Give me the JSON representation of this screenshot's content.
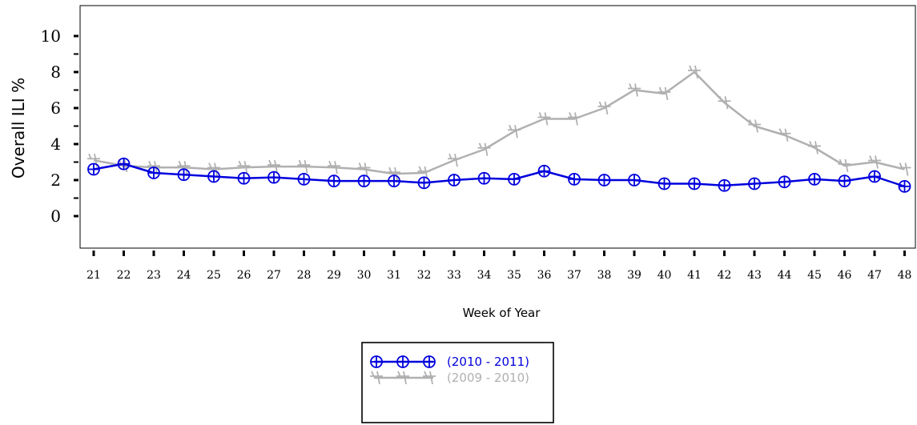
{
  "chart_data": {
    "type": "line",
    "title": "",
    "xlabel": "Week of Year",
    "ylabel": "Overall ILI %",
    "categories": [
      "21",
      "22",
      "23",
      "24",
      "25",
      "26",
      "27",
      "28",
      "29",
      "30",
      "31",
      "32",
      "33",
      "34",
      "35",
      "36",
      "37",
      "38",
      "39",
      "40",
      "41",
      "42",
      "43",
      "44",
      "45",
      "46",
      "47",
      "48"
    ],
    "yticks": [
      "0",
      "2",
      "4",
      "6",
      "8",
      "10"
    ],
    "ylim": [
      0,
      10
    ],
    "series": [
      {
        "name": "(2010 - 2011)",
        "color": "#0000dd",
        "marker": "circle-plus",
        "values": [
          2.6,
          2.9,
          2.4,
          2.3,
          2.2,
          2.1,
          2.15,
          2.05,
          1.95,
          1.95,
          1.95,
          1.85,
          2.0,
          2.1,
          2.05,
          2.5,
          2.05,
          2.0,
          2.0,
          1.8,
          1.8,
          1.7,
          1.8,
          1.9,
          2.05,
          1.95,
          2.2,
          1.65
        ]
      },
      {
        "name": "(2009 - 2010)",
        "color": "#b0b0b0",
        "marker": "currency",
        "values": [
          3.1,
          2.8,
          2.7,
          2.7,
          2.6,
          2.7,
          2.75,
          2.75,
          2.7,
          2.6,
          2.35,
          2.4,
          3.1,
          3.7,
          4.7,
          5.4,
          5.4,
          6.0,
          7.0,
          6.8,
          8.0,
          6.3,
          5.0,
          4.5,
          3.8,
          2.8,
          3.0,
          2.6
        ]
      }
    ],
    "legend": {
      "position": "bottom-center"
    }
  }
}
